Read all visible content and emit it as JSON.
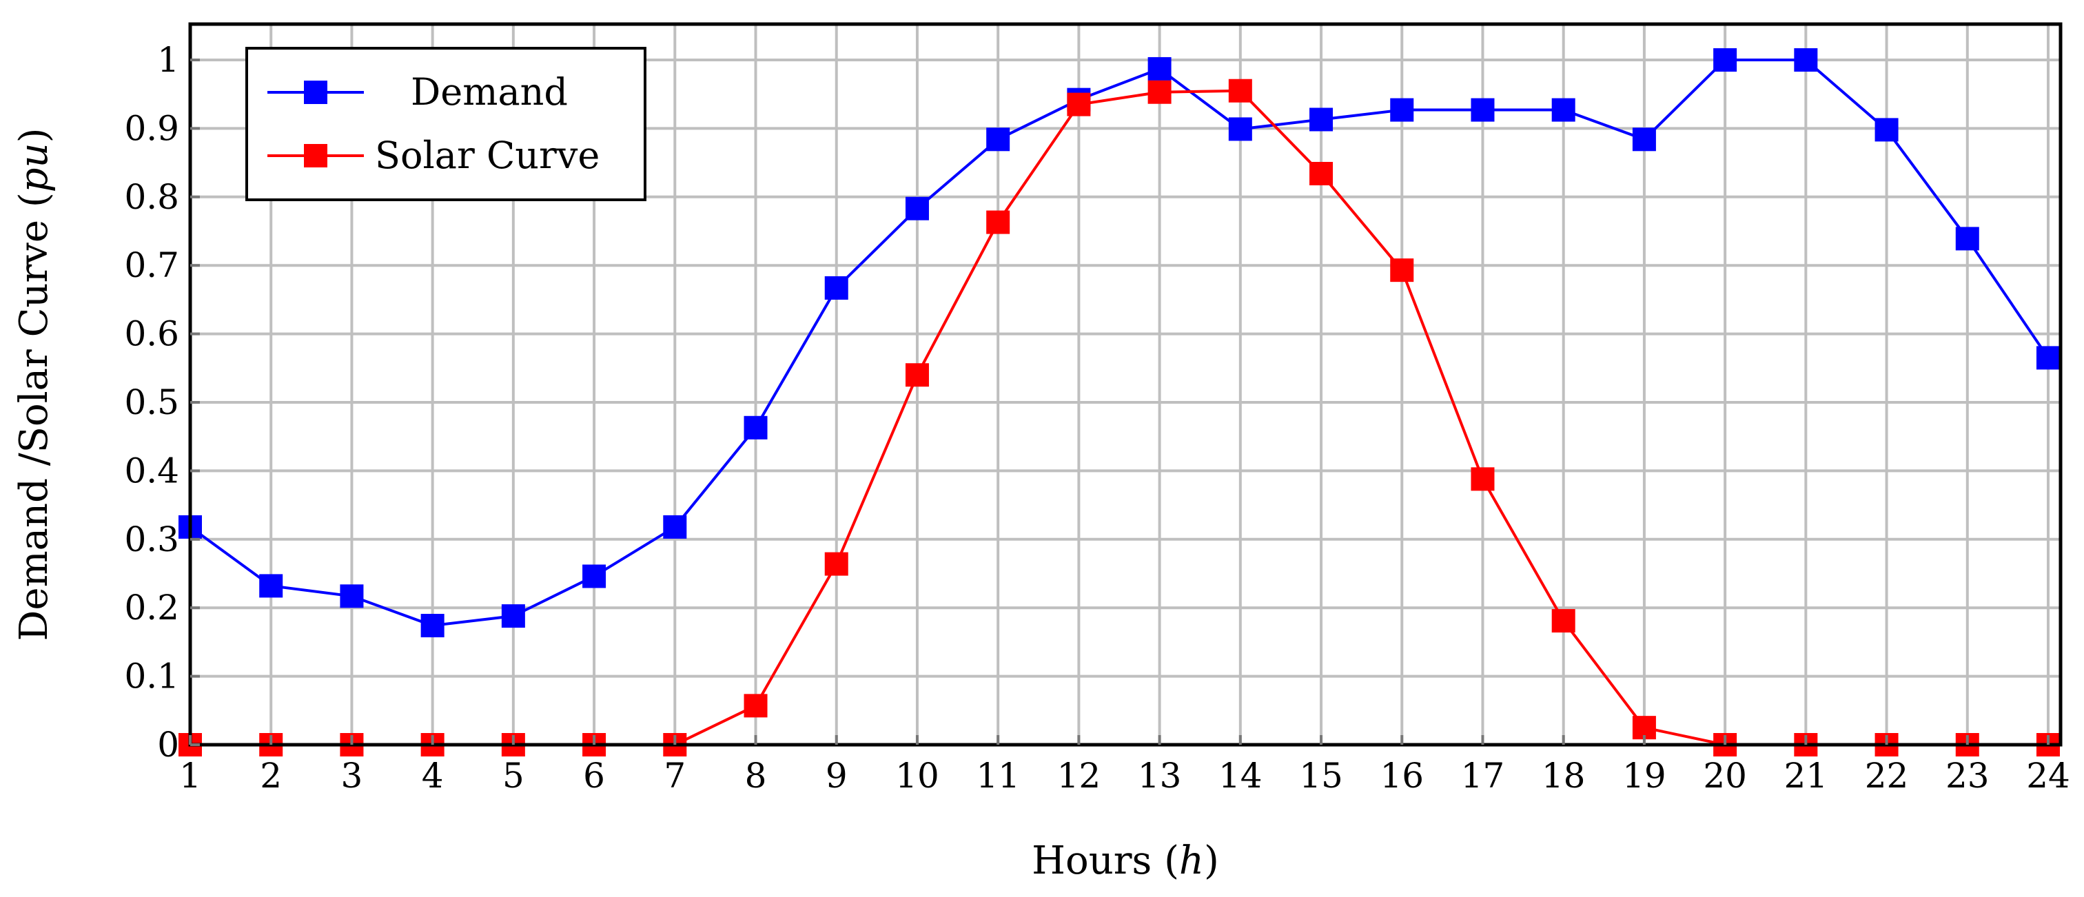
{
  "chart_data": {
    "type": "line",
    "title": "",
    "xlabel": "Hours (h)",
    "xlabel_parts": {
      "text": "Hours (",
      "italic": "h",
      "close": ")"
    },
    "ylabel": "Demand /Solar Curve (pu)",
    "ylabel_parts": {
      "text": "Demand /Solar Curve (",
      "italic": "pu",
      "close": ")"
    },
    "x": [
      1,
      2,
      3,
      4,
      5,
      6,
      7,
      8,
      9,
      10,
      11,
      12,
      13,
      14,
      15,
      16,
      17,
      18,
      19,
      20,
      21,
      22,
      23,
      24
    ],
    "x_ticks": [
      "1",
      "2",
      "3",
      "4",
      "5",
      "6",
      "7",
      "8",
      "9",
      "10",
      "11",
      "12",
      "13",
      "14",
      "15",
      "16",
      "17",
      "18",
      "19",
      "20",
      "21",
      "22",
      "23",
      "24"
    ],
    "y_ticks": [
      "0",
      "0.1",
      "0.2",
      "0.3",
      "0.4",
      "0.5",
      "0.6",
      "0.7",
      "0.8",
      "0.9",
      "1"
    ],
    "xlim": [
      1,
      24
    ],
    "ylim": [
      0,
      1.05
    ],
    "grid": true,
    "legend_position": "upper left",
    "series": [
      {
        "name": "Demand",
        "color": "#0000ff",
        "marker": "square",
        "values": [
          0.318,
          0.232,
          0.217,
          0.174,
          0.188,
          0.246,
          0.318,
          0.463,
          0.667,
          0.783,
          0.884,
          0.942,
          0.987,
          0.899,
          0.913,
          0.927,
          0.927,
          0.927,
          0.884,
          1.0,
          1.0,
          0.898,
          0.739,
          0.565
        ]
      },
      {
        "name": "Solar Curve",
        "color": "#ff0000",
        "marker": "square",
        "values": [
          0,
          0,
          0,
          0,
          0,
          0,
          0,
          0.057,
          0.264,
          0.54,
          0.763,
          0.935,
          0.953,
          0.955,
          0.834,
          0.693,
          0.388,
          0.181,
          0.025,
          0,
          0,
          0,
          0,
          0
        ]
      }
    ]
  }
}
